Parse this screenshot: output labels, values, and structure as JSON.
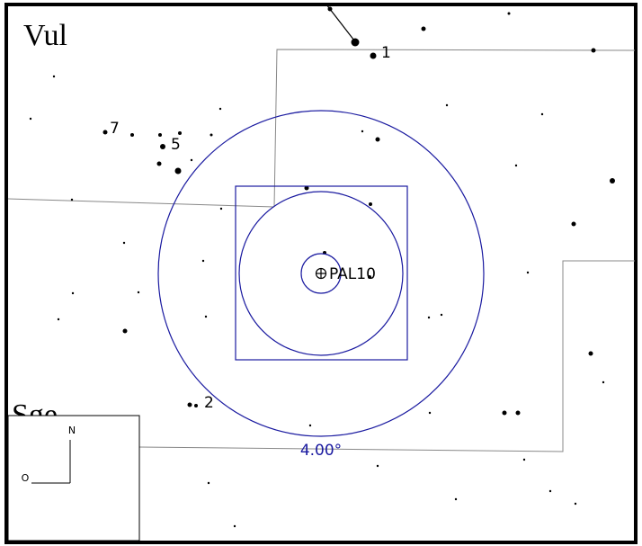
{
  "constellations": [
    "Vul",
    "Sge"
  ],
  "star_labels": [
    "1",
    "7",
    "5",
    "2"
  ],
  "target": {
    "name": "PAL10"
  },
  "field_size": "4.00°",
  "compass": {
    "north": "N",
    "west": "O"
  }
}
